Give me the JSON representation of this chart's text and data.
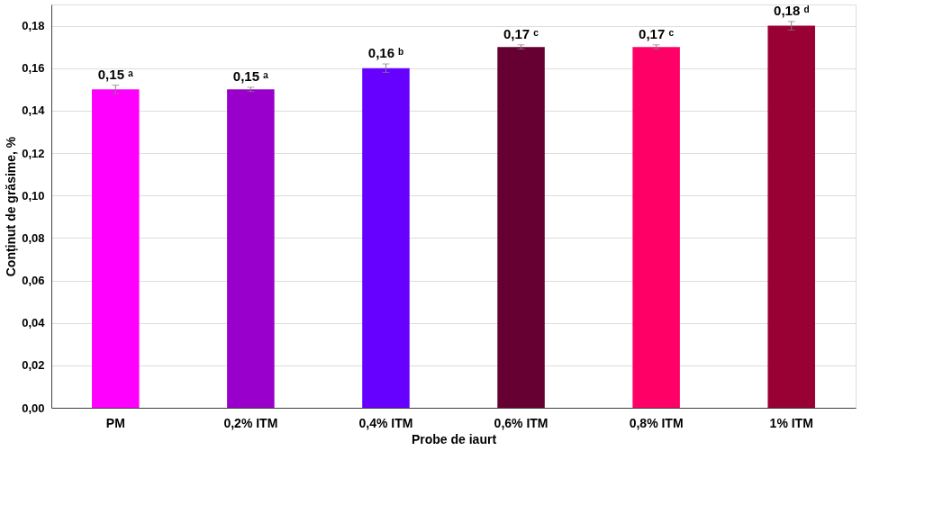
{
  "chart_data": {
    "type": "bar",
    "xlabel": "Probe de iaurt",
    "ylabel": "Conținut de grăsime, %",
    "categories": [
      "PM",
      "0,2% ITM",
      "0,4% ITM",
      "0,6% ITM",
      "0,8% ITM",
      "1% ITM"
    ],
    "values": [
      0.15,
      0.15,
      0.16,
      0.17,
      0.17,
      0.18
    ],
    "colors": [
      "#ff00ff",
      "#9900cc",
      "#6600ff",
      "#660033",
      "#ff0066",
      "#990033"
    ],
    "errors": [
      0.002,
      0.001,
      0.002,
      0.001,
      0.001,
      0.002
    ],
    "value_labels": [
      "0,15 ᵃ",
      "0,15 ᵃ",
      "0,16 ᵇ",
      "0,17 ᶜ",
      "0,17 ᶜ",
      "0,18 ᵈ"
    ],
    "ylim": [
      0,
      0.19
    ],
    "yticks": [
      {
        "value": 0,
        "label": "0,00"
      },
      {
        "value": 0.02,
        "label": "0,02"
      },
      {
        "value": 0.04,
        "label": "0,04"
      },
      {
        "value": 0.06,
        "label": "0,06"
      },
      {
        "value": 0.08,
        "label": "0,08"
      },
      {
        "value": 0.1,
        "label": "0,10"
      },
      {
        "value": 0.12,
        "label": "0,12"
      },
      {
        "value": 0.14,
        "label": "0,14"
      },
      {
        "value": 0.16,
        "label": "0,16"
      },
      {
        "value": 0.18,
        "label": "0,18"
      }
    ],
    "grid": "y"
  }
}
